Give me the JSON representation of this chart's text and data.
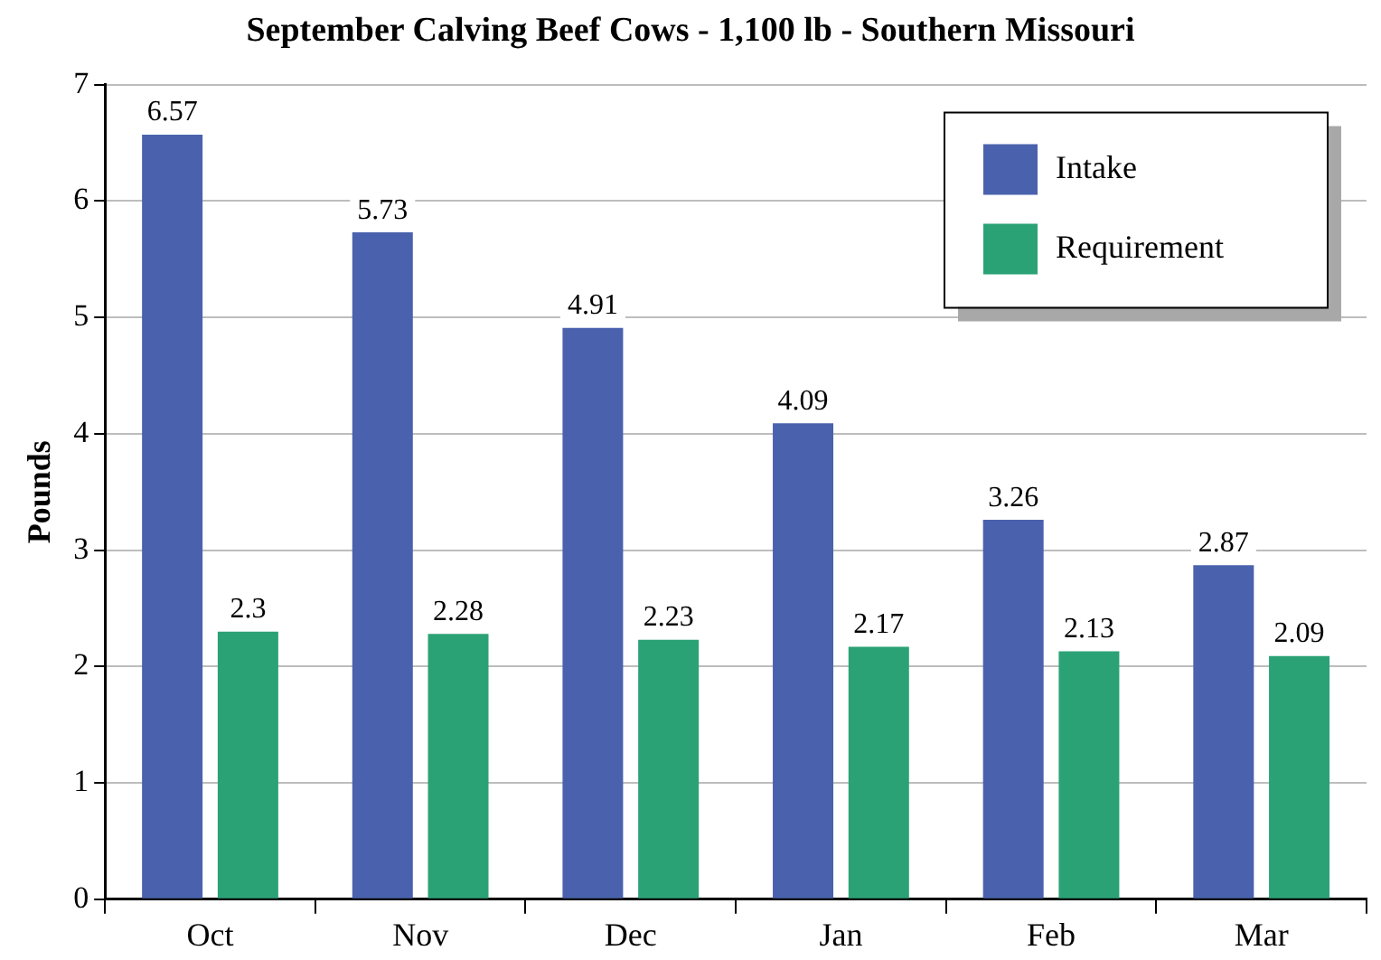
{
  "chart_data": {
    "type": "bar",
    "title": "September Calving Beef Cows - 1,100 lb - Southern Missouri",
    "ylabel": "Pounds",
    "categories": [
      "Oct",
      "Nov",
      "Dec",
      "Jan",
      "Feb",
      "Mar"
    ],
    "series": [
      {
        "name": "Intake",
        "color": "#4a62ad",
        "values": [
          6.57,
          5.73,
          4.91,
          4.09,
          3.26,
          2.87
        ]
      },
      {
        "name": "Requirement",
        "color": "#2ba275",
        "values": [
          2.3,
          2.28,
          2.23,
          2.17,
          2.13,
          2.09
        ]
      }
    ],
    "ylim": [
      0,
      7
    ],
    "yticks": [
      0,
      1,
      2,
      3,
      4,
      5,
      6,
      7
    ],
    "grid": "y",
    "legend": "top right",
    "data_labels": true
  }
}
